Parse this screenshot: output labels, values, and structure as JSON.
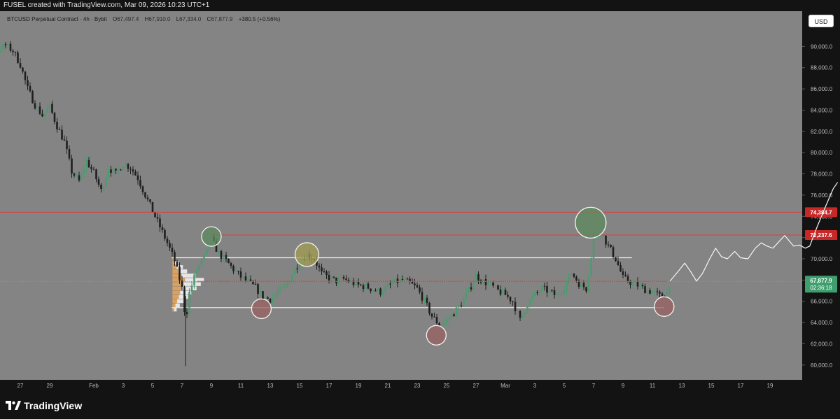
{
  "header": {
    "credit": "FUSEL created with TradingView.com, Mar 09, 2026 10:23 UTC+1"
  },
  "legend": {
    "symbol": "BTCUSD Perpetual Contract · 4h · Bybit",
    "open_label": "O",
    "open": "67,497.4",
    "high_label": "H",
    "high": "67,910.0",
    "low_label": "L",
    "low": "67,334.0",
    "close_label": "C",
    "close": "67,877.9",
    "change": "+380.5 (+0.56%)"
  },
  "currency": "USD",
  "footer": {
    "brand": "TradingView"
  },
  "colors": {
    "background": "#848484",
    "panel": "#131313",
    "candle_up": "#4e9a70",
    "candle_down": "#1f1f1f",
    "red_line": "#e03a3a",
    "white_line": "#f4f4f4",
    "price_badge": "#3f9e6e",
    "level_badge": "#c62828",
    "volume_profile": "#e4a45c"
  },
  "chart_data": {
    "type": "candlestick",
    "symbol": "BTCUSD",
    "timeframe": "4h",
    "exchange": "Bybit",
    "ylim": [
      59000,
      92000
    ],
    "y_ticks": [
      "60,000.0",
      "62,000.0",
      "64,000.0",
      "66,000.0",
      "68,000.0",
      "70,000.0",
      "72,000.0",
      "74,000.0",
      "76,000.0",
      "78,000.0",
      "80,000.0",
      "82,000.0",
      "84,000.0",
      "86,000.0",
      "88,000.0",
      "90,000.0"
    ],
    "x_ticks": [
      "27",
      "29",
      "Feb",
      "3",
      "5",
      "7",
      "9",
      "11",
      "13",
      "15",
      "17",
      "19",
      "21",
      "23",
      "25",
      "27",
      "Mar",
      "3",
      "5",
      "7",
      "9",
      "11",
      "13",
      "15",
      "17",
      "19"
    ],
    "x_tick_day_index": [
      -5,
      -3,
      0,
      2,
      4,
      6,
      8,
      10,
      12,
      14,
      16,
      18,
      20,
      22,
      24,
      26,
      28,
      30,
      32,
      34,
      36,
      38,
      40,
      42,
      44,
      46
    ],
    "close_path": [
      [
        -10,
        87800
      ],
      [
        -9,
        88400
      ],
      [
        -8,
        88200
      ],
      [
        -7,
        89200
      ],
      [
        -6,
        90100
      ],
      [
        -5.5,
        89600
      ],
      [
        -5,
        88300
      ],
      [
        -4.5,
        86000
      ],
      [
        -4,
        84500
      ],
      [
        -3.5,
        83500
      ],
      [
        -3,
        84300
      ],
      [
        -2.5,
        82500
      ],
      [
        -2,
        81000
      ],
      [
        -1.5,
        78200
      ],
      [
        -1,
        77300
      ],
      [
        -0.5,
        79200
      ],
      [
        0,
        78100
      ],
      [
        0.5,
        76400
      ],
      [
        1,
        78600
      ],
      [
        1.5,
        78000
      ],
      [
        2,
        79000
      ],
      [
        2.5,
        78600
      ],
      [
        3,
        77600
      ],
      [
        3.5,
        76000
      ],
      [
        4,
        74500
      ],
      [
        4.5,
        73000
      ],
      [
        5,
        71500
      ],
      [
        5.5,
        69800
      ],
      [
        6,
        67200
      ],
      [
        6.25,
        64200
      ],
      [
        6.5,
        66800
      ],
      [
        7,
        69000
      ],
      [
        7.5,
        70100
      ],
      [
        8,
        71800
      ],
      [
        8.5,
        70500
      ],
      [
        9,
        69800
      ],
      [
        9.5,
        69000
      ],
      [
        10,
        68300
      ],
      [
        10.5,
        67800
      ],
      [
        11,
        67300
      ],
      [
        11.5,
        66400
      ],
      [
        12,
        66200
      ],
      [
        12.5,
        66800
      ],
      [
        13,
        67300
      ],
      [
        13.5,
        68600
      ],
      [
        14,
        69800
      ],
      [
        14.5,
        70400
      ],
      [
        15,
        70000
      ],
      [
        15.5,
        68600
      ],
      [
        16,
        68200
      ],
      [
        16.5,
        67900
      ],
      [
        17,
        68100
      ],
      [
        17.5,
        67800
      ],
      [
        18,
        67500
      ],
      [
        18.5,
        67400
      ],
      [
        19,
        67100
      ],
      [
        19.5,
        66900
      ],
      [
        20,
        67400
      ],
      [
        20.5,
        67800
      ],
      [
        21,
        68000
      ],
      [
        21.5,
        67700
      ],
      [
        22,
        67200
      ],
      [
        22.5,
        66000
      ],
      [
        23,
        64600
      ],
      [
        23.5,
        63800
      ],
      [
        24,
        64200
      ],
      [
        24.5,
        64900
      ],
      [
        25,
        65800
      ],
      [
        25.5,
        67000
      ],
      [
        26,
        68400
      ],
      [
        26.5,
        67900
      ],
      [
        27,
        67500
      ],
      [
        27.5,
        67000
      ],
      [
        28,
        66600
      ],
      [
        28.5,
        66000
      ],
      [
        29,
        64200
      ],
      [
        29.5,
        65800
      ],
      [
        30,
        66600
      ],
      [
        30.5,
        67200
      ],
      [
        31,
        66900
      ],
      [
        31.5,
        66500
      ],
      [
        32,
        67400
      ],
      [
        32.5,
        68700
      ],
      [
        33,
        67700
      ],
      [
        33.5,
        67200
      ],
      [
        34,
        71800
      ],
      [
        34.5,
        72500
      ],
      [
        35,
        71200
      ],
      [
        35.5,
        70000
      ],
      [
        36,
        68200
      ],
      [
        36.5,
        67800
      ],
      [
        37,
        67500
      ],
      [
        37.5,
        67100
      ],
      [
        38,
        66900
      ],
      [
        38.5,
        66500
      ],
      [
        39,
        66800
      ],
      [
        39.2,
        67878
      ]
    ],
    "levels": [
      {
        "price": 74384.7,
        "label": "74,384.7",
        "color": "#e03a3a"
      },
      {
        "price": 72237.6,
        "label": "72,237.6",
        "color": "#e03a3a"
      },
      {
        "price": 67877.9,
        "label": "67,877.9",
        "color": "#e03a3a"
      }
    ],
    "range_box": {
      "top": 70100,
      "bottom": 65400,
      "from_day": 5.3,
      "to_day": 38.8
    },
    "current_price": {
      "value": 67877.9,
      "label": "67,877.9",
      "countdown": "02:36:18"
    },
    "highlights": [
      {
        "day": 8,
        "price": 72100,
        "kind": "high",
        "color": "#5e8a5e"
      },
      {
        "day": 14.5,
        "price": 70400,
        "kind": "high",
        "color": "#a19c50"
      },
      {
        "day": 33.8,
        "price": 73400,
        "kind": "high",
        "color": "#5e8a5e"
      },
      {
        "day": 11.4,
        "price": 65300,
        "kind": "low",
        "color": "#9a6060"
      },
      {
        "day": 23.3,
        "price": 62800,
        "kind": "low",
        "color": "#9a6060"
      },
      {
        "day": 38.8,
        "price": 65500,
        "kind": "low",
        "color": "#9a6060"
      }
    ],
    "projection": [
      [
        39.2,
        67900
      ],
      [
        39.8,
        68900
      ],
      [
        40.2,
        69600
      ],
      [
        40.6,
        68800
      ],
      [
        41,
        67900
      ],
      [
        41.4,
        68600
      ],
      [
        41.9,
        70000
      ],
      [
        42.3,
        71000
      ],
      [
        42.7,
        70200
      ],
      [
        43.1,
        70000
      ],
      [
        43.6,
        70700
      ],
      [
        44,
        70100
      ],
      [
        44.5,
        70000
      ],
      [
        45,
        71000
      ],
      [
        45.4,
        71500
      ],
      [
        45.8,
        71200
      ],
      [
        46.2,
        71000
      ],
      [
        46.6,
        71600
      ],
      [
        47,
        72200
      ],
      [
        47.6,
        71200
      ],
      [
        48,
        71300
      ],
      [
        48.4,
        71000
      ],
      [
        48.7,
        71200
      ],
      [
        49.2,
        73000
      ],
      [
        49.8,
        75000
      ],
      [
        50.3,
        76600
      ],
      [
        50.6,
        77200
      ]
    ],
    "volume_profile": {
      "base_day": 5.35,
      "bins": [
        [
          70000,
          3
        ],
        [
          69600,
          6
        ],
        [
          69200,
          10
        ],
        [
          68800,
          14
        ],
        [
          68400,
          22
        ],
        [
          68000,
          30
        ],
        [
          67600,
          27
        ],
        [
          67200,
          23
        ],
        [
          66800,
          18
        ],
        [
          66400,
          15
        ],
        [
          66000,
          11
        ],
        [
          65600,
          7
        ],
        [
          65200,
          4
        ]
      ]
    }
  }
}
